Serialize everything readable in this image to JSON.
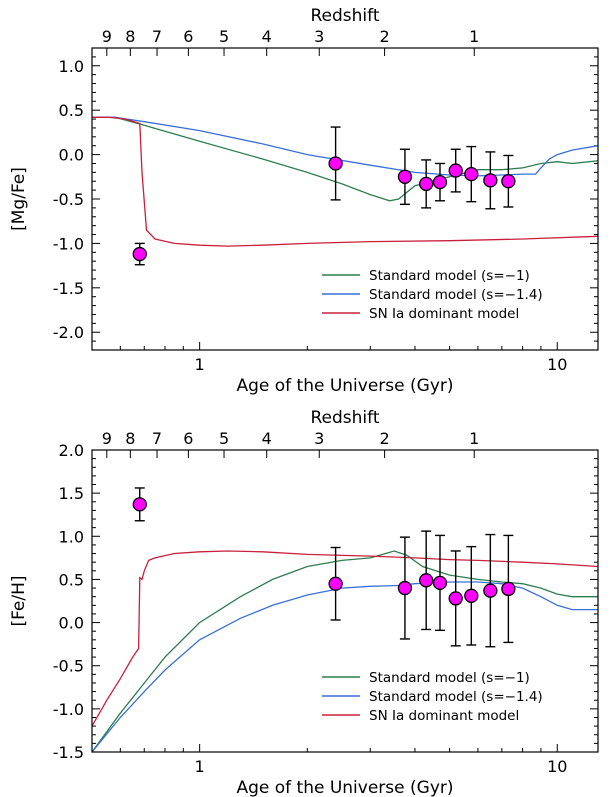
{
  "chart_data": [
    {
      "type": "line",
      "xlabel": "Age of the Universe (Gyr)",
      "ylabel": "[Mg/Fe]",
      "top_axis_label": "Redshift",
      "x_scale": "log",
      "xlim": [
        0.5,
        13
      ],
      "ylim": [
        -2.2,
        1.2
      ],
      "x_ticks": [
        1,
        10
      ],
      "y_ticks": [
        1.0,
        0.5,
        0.0,
        -0.5,
        -1.0,
        -1.5,
        -2.0
      ],
      "y_tick_labels": [
        "1.0",
        "0.5",
        "0.0",
        "-0.5",
        "-1.0",
        "-1.5",
        "-2.0"
      ],
      "redshift_ticks": [
        {
          "label": "9",
          "age": 0.55
        },
        {
          "label": "8",
          "age": 0.64
        },
        {
          "label": "7",
          "age": 0.76
        },
        {
          "label": "6",
          "age": 0.93
        },
        {
          "label": "5",
          "age": 1.17
        },
        {
          "label": "4",
          "age": 1.54
        },
        {
          "label": "3",
          "age": 2.16
        },
        {
          "label": "2",
          "age": 3.29
        },
        {
          "label": "1",
          "age": 5.86
        }
      ],
      "legend": {
        "position": "bottom-right"
      },
      "series": [
        {
          "name": "Standard model (s=−1)",
          "color": "#2e7d4f",
          "x": [
            0.5,
            0.58,
            0.7,
            1.0,
            1.5,
            2.0,
            2.5,
            3.0,
            3.4,
            3.6,
            4.0,
            5.0,
            6.0,
            7.0,
            8.0,
            9.0,
            10.0,
            11.0,
            13.0
          ],
          "y": [
            0.42,
            0.42,
            0.33,
            0.15,
            -0.05,
            -0.2,
            -0.33,
            -0.45,
            -0.52,
            -0.5,
            -0.35,
            -0.25,
            -0.17,
            -0.17,
            -0.15,
            -0.1,
            -0.08,
            -0.1,
            -0.07
          ]
        },
        {
          "name": "Standard model (s=−1.4)",
          "color": "#3a6fd8",
          "x": [
            0.5,
            0.58,
            0.7,
            1.0,
            1.5,
            2.0,
            3.0,
            4.0,
            5.0,
            6.0,
            7.0,
            8.0,
            8.7,
            9.0,
            9.5,
            10.0,
            11.0,
            13.0
          ],
          "y": [
            0.42,
            0.42,
            0.37,
            0.27,
            0.12,
            0.0,
            -0.12,
            -0.2,
            -0.23,
            -0.24,
            -0.23,
            -0.22,
            -0.22,
            -0.15,
            -0.05,
            0.0,
            0.05,
            0.1
          ]
        },
        {
          "name": "SN Ia dominant model",
          "color": "#c8203c",
          "x": [
            0.5,
            0.56,
            0.62,
            0.68,
            0.69,
            0.71,
            0.75,
            0.85,
            1.0,
            1.2,
            1.5,
            2.0,
            3.0,
            5.0,
            8.0,
            13.0
          ],
          "y": [
            0.42,
            0.42,
            0.4,
            0.35,
            -0.2,
            -0.85,
            -0.95,
            -1.0,
            -1.02,
            -1.03,
            -1.02,
            -1.0,
            -0.98,
            -0.97,
            -0.95,
            -0.92
          ]
        }
      ],
      "points": {
        "color": "#ff00ff",
        "x": [
          0.68,
          2.4,
          3.75,
          4.3,
          4.7,
          5.2,
          5.75,
          6.5,
          7.3
        ],
        "y": [
          -1.12,
          -0.1,
          -0.25,
          -0.33,
          -0.31,
          -0.18,
          -0.22,
          -0.29,
          -0.3
        ],
        "yerr": [
          0.12,
          0.41,
          0.31,
          0.27,
          0.21,
          0.24,
          0.31,
          0.32,
          0.29
        ]
      }
    },
    {
      "type": "line",
      "xlabel": "Age of the Universe (Gyr)",
      "ylabel": "[Fe/H]",
      "top_axis_label": "Redshift",
      "x_scale": "log",
      "xlim": [
        0.5,
        13
      ],
      "ylim": [
        -1.5,
        2.0
      ],
      "x_ticks": [
        1,
        10
      ],
      "y_ticks": [
        2.0,
        1.5,
        1.0,
        0.5,
        0.0,
        -0.5,
        -1.0,
        -1.5
      ],
      "y_tick_labels": [
        "2.0",
        "1.5",
        "1.0",
        "0.5",
        "0.0",
        "-0.5",
        "-1.0",
        "-1.5"
      ],
      "redshift_ticks": [
        {
          "label": "9",
          "age": 0.55
        },
        {
          "label": "8",
          "age": 0.64
        },
        {
          "label": "7",
          "age": 0.76
        },
        {
          "label": "6",
          "age": 0.93
        },
        {
          "label": "5",
          "age": 1.17
        },
        {
          "label": "4",
          "age": 1.54
        },
        {
          "label": "3",
          "age": 2.16
        },
        {
          "label": "2",
          "age": 3.29
        },
        {
          "label": "1",
          "age": 5.86
        }
      ],
      "legend": {
        "position": "bottom-right"
      },
      "series": [
        {
          "name": "Standard model (s=−1)",
          "color": "#2e7d4f",
          "x": [
            0.5,
            0.6,
            0.7,
            0.8,
            1.0,
            1.3,
            1.6,
            2.0,
            2.5,
            3.0,
            3.5,
            3.8,
            4.2,
            5.0,
            6.0,
            7.0,
            8.0,
            9.0,
            10.0,
            11.0,
            13.0
          ],
          "y": [
            -1.5,
            -1.05,
            -0.7,
            -0.4,
            0.0,
            0.3,
            0.5,
            0.65,
            0.72,
            0.75,
            0.83,
            0.78,
            0.65,
            0.55,
            0.5,
            0.47,
            0.45,
            0.4,
            0.33,
            0.3,
            0.3
          ]
        },
        {
          "name": "Standard model (s=−1.4)",
          "color": "#3a6fd8",
          "x": [
            0.5,
            0.6,
            0.7,
            0.8,
            1.0,
            1.3,
            1.6,
            2.0,
            2.5,
            3.0,
            3.6,
            4.0,
            5.0,
            6.0,
            7.0,
            8.0,
            9.0,
            10.0,
            11.0,
            13.0
          ],
          "y": [
            -1.5,
            -1.1,
            -0.8,
            -0.55,
            -0.2,
            0.05,
            0.2,
            0.32,
            0.4,
            0.42,
            0.43,
            0.45,
            0.47,
            0.47,
            0.45,
            0.4,
            0.3,
            0.2,
            0.15,
            0.15
          ]
        },
        {
          "name": "SN Ia dominant model",
          "color": "#c8203c",
          "x": [
            0.5,
            0.55,
            0.6,
            0.65,
            0.675,
            0.68,
            0.69,
            0.7,
            0.72,
            0.75,
            0.85,
            1.0,
            1.2,
            1.5,
            2.0,
            3.0,
            4.0,
            5.0,
            6.0,
            8.0,
            10.0,
            13.0
          ],
          "y": [
            -1.2,
            -0.9,
            -0.65,
            -0.4,
            -0.3,
            0.52,
            0.5,
            0.6,
            0.72,
            0.75,
            0.8,
            0.82,
            0.83,
            0.82,
            0.79,
            0.77,
            0.75,
            0.73,
            0.72,
            0.7,
            0.68,
            0.65
          ]
        }
      ],
      "points": {
        "color": "#ff00ff",
        "x": [
          0.68,
          2.4,
          3.75,
          4.3,
          4.7,
          5.2,
          5.75,
          6.5,
          7.3
        ],
        "y": [
          1.37,
          0.45,
          0.4,
          0.49,
          0.46,
          0.28,
          0.31,
          0.37,
          0.39
        ],
        "yerr": [
          0.19,
          0.42,
          0.59,
          0.57,
          0.55,
          0.55,
          0.57,
          0.65,
          0.62
        ]
      }
    }
  ]
}
